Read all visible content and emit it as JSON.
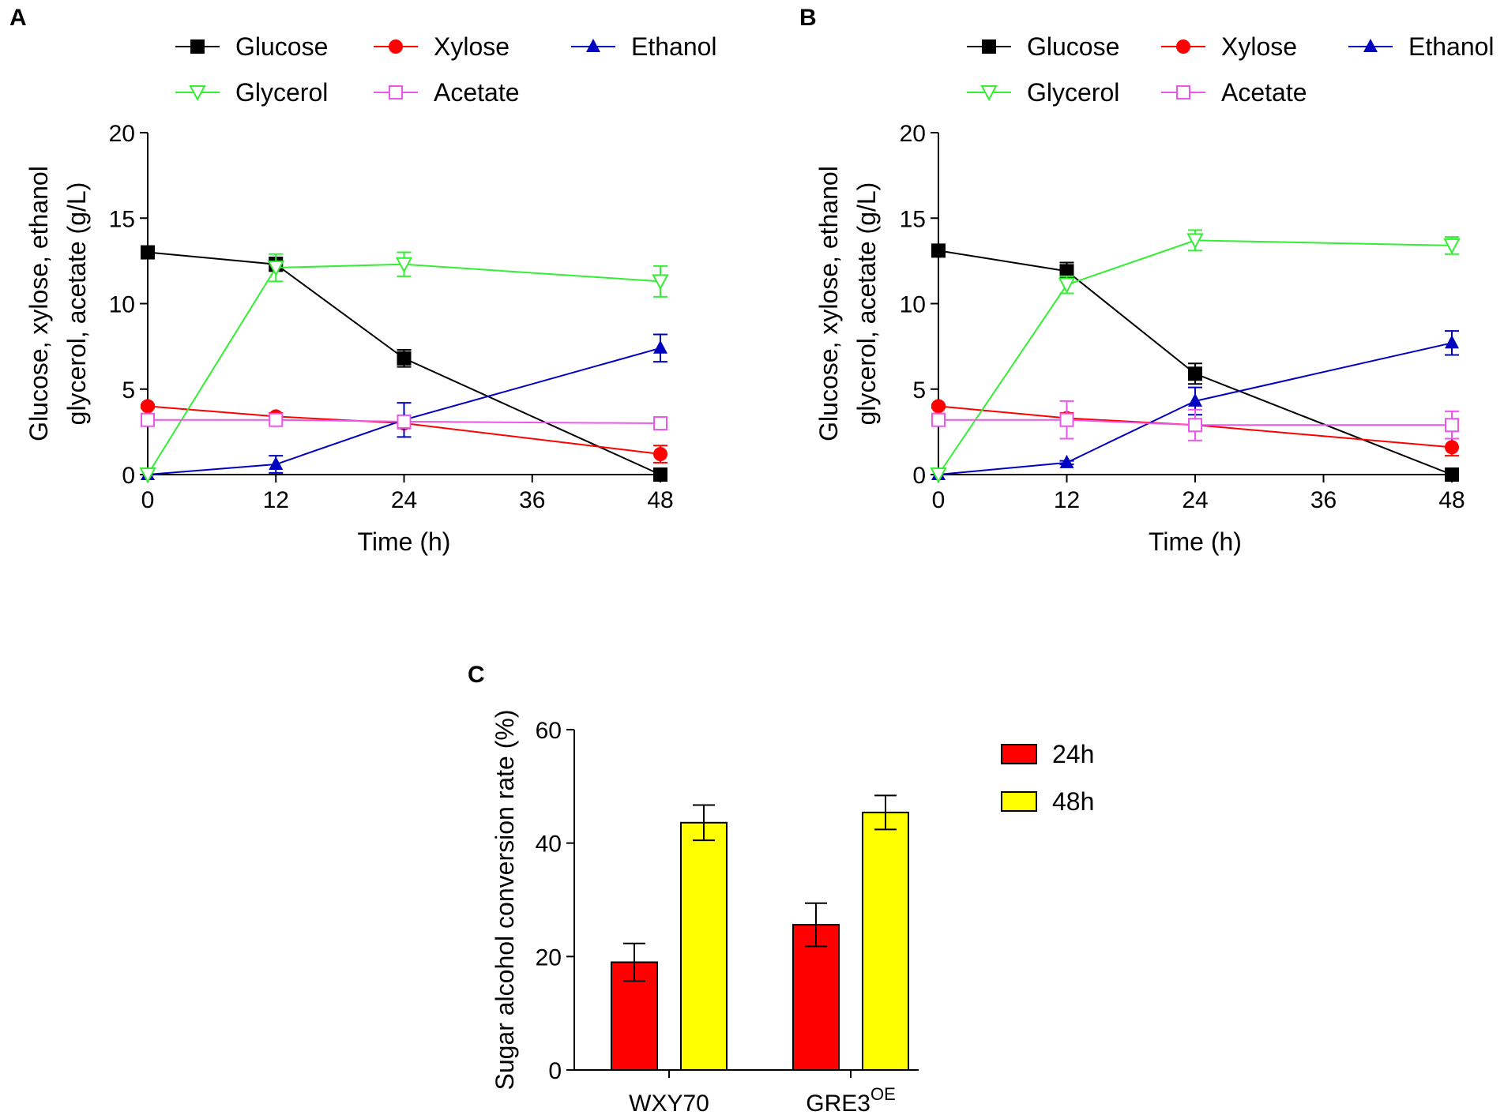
{
  "chart_data": [
    {
      "panel": "A",
      "type": "line",
      "x": [
        0,
        12,
        24,
        48
      ],
      "xlabel": "Time (h)",
      "ylabel_lines": [
        "Glucose, xylose, ethanol",
        "glycerol, acetate (g/L)"
      ],
      "xlim": [
        0,
        48
      ],
      "ylim": [
        0,
        20
      ],
      "xticks": [
        0,
        12,
        24,
        36,
        48
      ],
      "yticks": [
        0,
        5,
        10,
        15,
        20
      ],
      "legend": [
        "Glucose",
        "Xylose",
        "Ethanol",
        "Glycerol",
        "Acetate"
      ],
      "series": [
        {
          "name": "Glucose",
          "color": "#000000",
          "marker": "square-filled",
          "values": [
            13.0,
            12.3,
            6.8,
            0.0
          ],
          "errors": [
            0.2,
            0.4,
            0.5,
            0.1
          ]
        },
        {
          "name": "Xylose",
          "color": "#ff0000",
          "marker": "circle-filled",
          "values": [
            4.0,
            3.4,
            3.0,
            1.2
          ],
          "errors": [
            0.1,
            0.2,
            0.3,
            0.5
          ]
        },
        {
          "name": "Ethanol",
          "color": "#0000c0",
          "marker": "triangle-up-filled",
          "values": [
            0.0,
            0.6,
            3.2,
            7.4
          ],
          "errors": [
            0.0,
            0.5,
            1.0,
            0.8
          ]
        },
        {
          "name": "Glycerol",
          "color": "#33ee33",
          "marker": "triangle-down-open",
          "values": [
            0.0,
            12.1,
            12.3,
            11.3
          ],
          "errors": [
            0.0,
            0.8,
            0.7,
            0.9
          ]
        },
        {
          "name": "Acetate",
          "color": "#ee55ee",
          "marker": "square-open",
          "values": [
            3.2,
            3.2,
            3.1,
            3.0
          ],
          "errors": [
            0.2,
            0.2,
            0.3,
            0.2
          ]
        }
      ]
    },
    {
      "panel": "B",
      "type": "line",
      "x": [
        0,
        12,
        24,
        48
      ],
      "xlabel": "Time (h)",
      "ylabel_lines": [
        "Glucose, xylose, ethanol",
        "glycerol, acetate (g/L)"
      ],
      "xlim": [
        0,
        48
      ],
      "ylim": [
        0,
        20
      ],
      "xticks": [
        0,
        12,
        24,
        36,
        48
      ],
      "yticks": [
        0,
        5,
        10,
        15,
        20
      ],
      "legend": [
        "Glucose",
        "Xylose",
        "Ethanol",
        "Glycerol",
        "Acetate"
      ],
      "series": [
        {
          "name": "Glucose",
          "color": "#000000",
          "marker": "square-filled",
          "values": [
            13.1,
            11.9,
            5.9,
            0.0
          ],
          "errors": [
            0.2,
            0.5,
            0.6,
            0.1
          ]
        },
        {
          "name": "Xylose",
          "color": "#ff0000",
          "marker": "circle-filled",
          "values": [
            4.0,
            3.3,
            2.9,
            1.6
          ],
          "errors": [
            0.1,
            0.3,
            0.3,
            0.5
          ]
        },
        {
          "name": "Ethanol",
          "color": "#0000c0",
          "marker": "triangle-up-filled",
          "values": [
            0.0,
            0.7,
            4.3,
            7.7
          ],
          "errors": [
            0.0,
            0.1,
            0.8,
            0.7
          ]
        },
        {
          "name": "Glycerol",
          "color": "#33ee33",
          "marker": "triangle-down-open",
          "values": [
            0.0,
            11.1,
            13.7,
            13.4
          ],
          "errors": [
            0.0,
            0.5,
            0.6,
            0.5
          ]
        },
        {
          "name": "Acetate",
          "color": "#ee55ee",
          "marker": "square-open",
          "values": [
            3.2,
            3.2,
            2.9,
            2.9
          ],
          "errors": [
            0.2,
            1.1,
            0.9,
            0.8
          ]
        }
      ]
    },
    {
      "panel": "C",
      "type": "bar",
      "categories": [
        "WXY70",
        "GRE3"
      ],
      "category_superscripts": [
        "",
        "OE"
      ],
      "ylabel": "Sugar alcohol conversion rate (%)",
      "ylim": [
        0,
        60
      ],
      "yticks": [
        0,
        20,
        40,
        60
      ],
      "legend_position": "right",
      "series": [
        {
          "name": "24h",
          "color": "#ff0000",
          "values": [
            19.0,
            25.6
          ],
          "errors": [
            3.3,
            3.8
          ]
        },
        {
          "name": "48h",
          "color": "#ffff00",
          "values": [
            43.6,
            45.4
          ],
          "errors": [
            3.1,
            3.0
          ]
        }
      ]
    }
  ]
}
